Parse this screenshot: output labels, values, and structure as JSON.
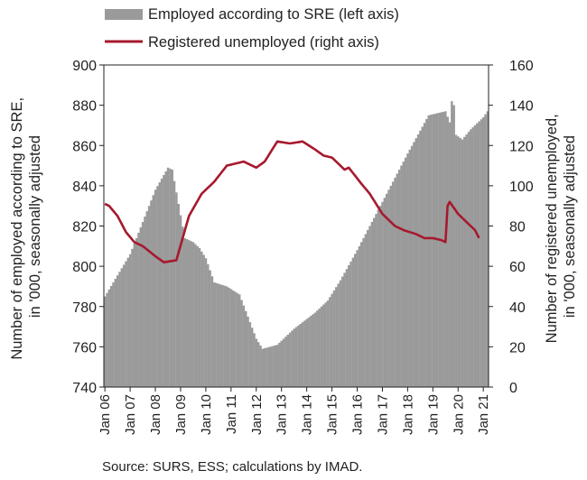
{
  "chart_data": {
    "type": "bar+line",
    "legend": [
      {
        "label": "Employed according to SRE (left axis)",
        "kind": "bar",
        "color": "#9a9a9a"
      },
      {
        "label": "Registered unemployed (right axis)",
        "kind": "line",
        "color": "#a6192e"
      }
    ],
    "legend_position": "top",
    "y_left": {
      "label_lines": [
        "Number of employed according to SRE,",
        "in '000, seasonally adjusted"
      ],
      "min": 740,
      "max": 900,
      "ticks": [
        740,
        760,
        780,
        800,
        820,
        840,
        860,
        880,
        900
      ]
    },
    "y_right": {
      "label_lines": [
        "Number of registered unemployed,",
        "in '000, seasonally adjusted"
      ],
      "min": 0,
      "max": 160,
      "ticks": [
        0,
        20,
        40,
        60,
        80,
        100,
        120,
        140,
        160
      ]
    },
    "x_ticks": [
      "Jan 06",
      "Jan 07",
      "Jan 08",
      "Jan 09",
      "Jan 10",
      "Jan 11",
      "Jan 12",
      "Jan 13",
      "Jan 14",
      "Jan 15",
      "Jan 16",
      "Jan 17",
      "Jan 18",
      "Jan 19",
      "Jan 20",
      "Jan 21"
    ],
    "frequency": "monthly",
    "start": "Jan 06",
    "grid": false,
    "series": [
      {
        "name": "Employed according to SRE (left axis)",
        "axis": "left",
        "type": "bar",
        "color": "#9a9a9a",
        "anchors": [
          [
            0,
            785
          ],
          [
            12,
            806
          ],
          [
            24,
            838
          ],
          [
            30,
            849
          ],
          [
            32,
            848
          ],
          [
            38,
            814
          ],
          [
            42,
            812
          ],
          [
            45,
            809
          ],
          [
            48,
            804
          ],
          [
            52,
            792
          ],
          [
            58,
            790
          ],
          [
            64,
            786
          ],
          [
            72,
            764
          ],
          [
            75,
            759
          ],
          [
            82,
            761
          ],
          [
            90,
            769
          ],
          [
            100,
            777
          ],
          [
            106,
            783
          ],
          [
            112,
            793
          ],
          [
            120,
            808
          ],
          [
            132,
            832
          ],
          [
            144,
            856
          ],
          [
            154,
            875
          ],
          [
            162,
            877
          ],
          [
            166,
            866
          ],
          [
            170,
            863
          ],
          [
            174,
            868
          ],
          [
            180,
            874
          ],
          [
            182,
            877
          ]
        ],
        "spikes": [
          [
            165,
            882
          ],
          [
            166,
            880
          ]
        ]
      },
      {
        "name": "Registered unemployed (right axis)",
        "axis": "right",
        "type": "line",
        "color": "#a6192e",
        "anchors": [
          [
            0,
            91
          ],
          [
            2,
            90
          ],
          [
            6,
            85
          ],
          [
            10,
            77
          ],
          [
            14,
            72
          ],
          [
            18,
            70
          ],
          [
            24,
            65
          ],
          [
            28,
            62
          ],
          [
            34,
            63
          ],
          [
            40,
            85
          ],
          [
            46,
            96
          ],
          [
            52,
            102
          ],
          [
            58,
            110
          ],
          [
            62,
            111
          ],
          [
            66,
            112
          ],
          [
            72,
            109
          ],
          [
            76,
            112
          ],
          [
            82,
            122
          ],
          [
            88,
            121
          ],
          [
            94,
            122
          ],
          [
            100,
            118
          ],
          [
            104,
            115
          ],
          [
            108,
            114
          ],
          [
            114,
            108
          ],
          [
            116,
            109
          ],
          [
            122,
            101
          ],
          [
            126,
            96
          ],
          [
            132,
            86
          ],
          [
            138,
            80
          ],
          [
            142,
            78
          ],
          [
            148,
            76
          ],
          [
            152,
            74
          ],
          [
            156,
            74
          ],
          [
            160,
            73
          ],
          [
            162,
            72
          ],
          [
            163,
            90
          ],
          [
            164,
            92
          ],
          [
            168,
            86
          ],
          [
            172,
            82
          ],
          [
            176,
            78
          ],
          [
            178,
            74
          ]
        ]
      }
    ],
    "source": "Source: SURS, ESS; calculations by IMAD."
  }
}
